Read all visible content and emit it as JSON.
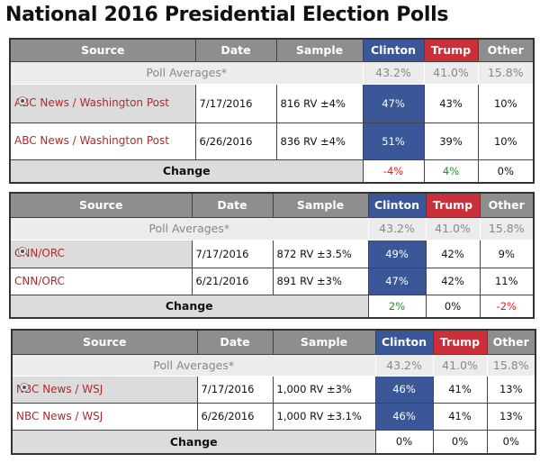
{
  "title": "National 2016 Presidential Election Polls",
  "colors": {
    "clinton": "#3a5798",
    "trump": "#c9303a",
    "negative": "#e02020",
    "positive": "#2a8a2a",
    "neutral": "#111111"
  },
  "headers": {
    "source": "Source",
    "date": "Date",
    "sample": "Sample",
    "clinton": "Clinton",
    "trump": "Trump",
    "other": "Other"
  },
  "averages": {
    "label": "Poll Averages*",
    "clinton": "43.2%",
    "trump": "41.0%",
    "other": "15.8%"
  },
  "change_label": "Change",
  "tables": [
    {
      "rows": [
        {
          "source": "ABC News / Washington Post",
          "date": "7/17/2016",
          "sample": "816 RV ±4%",
          "clinton": "47%",
          "trump": "43%",
          "other": "10%",
          "selected": true
        },
        {
          "source": "ABC News / Washington Post",
          "date": "6/26/2016",
          "sample": "836 RV ±4%",
          "clinton": "51%",
          "trump": "39%",
          "other": "10%",
          "selected": false
        }
      ],
      "change": {
        "clinton": "-4%",
        "trump": "4%",
        "other": "0%"
      },
      "change_tone": {
        "clinton": "negative",
        "trump": "positive",
        "other": "neutral"
      }
    },
    {
      "rows": [
        {
          "source": "CNN/ORC",
          "date": "7/17/2016",
          "sample": "872 RV ±3.5%",
          "clinton": "49%",
          "trump": "42%",
          "other": "9%",
          "selected": true
        },
        {
          "source": "CNN/ORC",
          "date": "6/21/2016",
          "sample": "891 RV ±3%",
          "clinton": "47%",
          "trump": "42%",
          "other": "11%",
          "selected": false
        }
      ],
      "change": {
        "clinton": "2%",
        "trump": "0%",
        "other": "-2%"
      },
      "change_tone": {
        "clinton": "positive",
        "trump": "neutral",
        "other": "negative"
      }
    },
    {
      "rows": [
        {
          "source": "NBC News / WSJ",
          "date": "7/17/2016",
          "sample": "1,000 RV ±3%",
          "clinton": "46%",
          "trump": "41%",
          "other": "13%",
          "selected": true
        },
        {
          "source": "NBC News / WSJ",
          "date": "6/26/2016",
          "sample": "1,000 RV ±3.1%",
          "clinton": "46%",
          "trump": "41%",
          "other": "13%",
          "selected": false
        }
      ],
      "change": {
        "clinton": "0%",
        "trump": "0%",
        "other": "0%"
      },
      "change_tone": {
        "clinton": "neutral",
        "trump": "neutral",
        "other": "neutral"
      }
    }
  ]
}
